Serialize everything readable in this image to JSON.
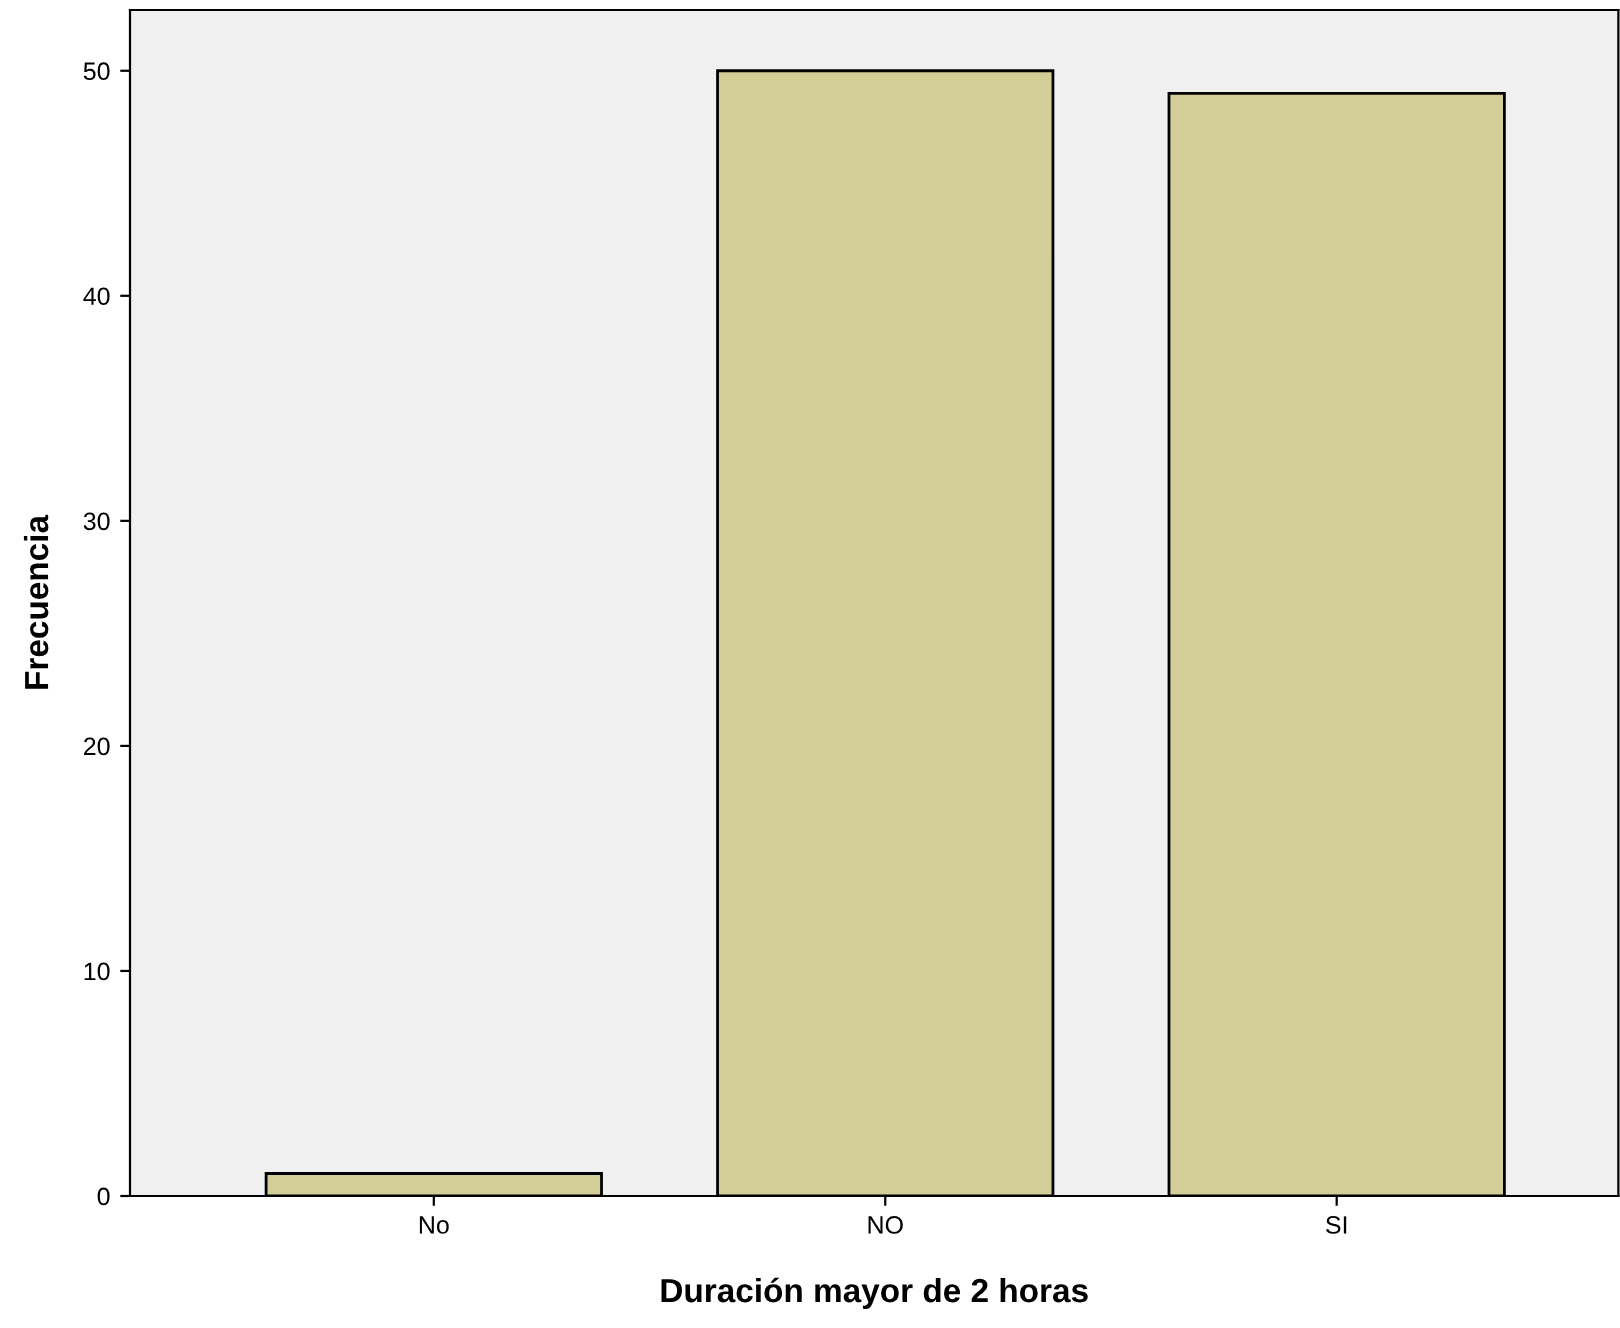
{
  "chart_data": {
    "type": "bar",
    "xlabel": "Duración mayor de 2 horas",
    "ylabel": "Frecuencia",
    "categories": [
      "No",
      "NO",
      "SI"
    ],
    "values": [
      1,
      50,
      49
    ],
    "color": "#d3ce97",
    "ylim": [
      0,
      52.7
    ],
    "yticks": [
      0,
      10,
      20,
      30,
      40,
      50
    ],
    "grid": false,
    "legend": false
  }
}
